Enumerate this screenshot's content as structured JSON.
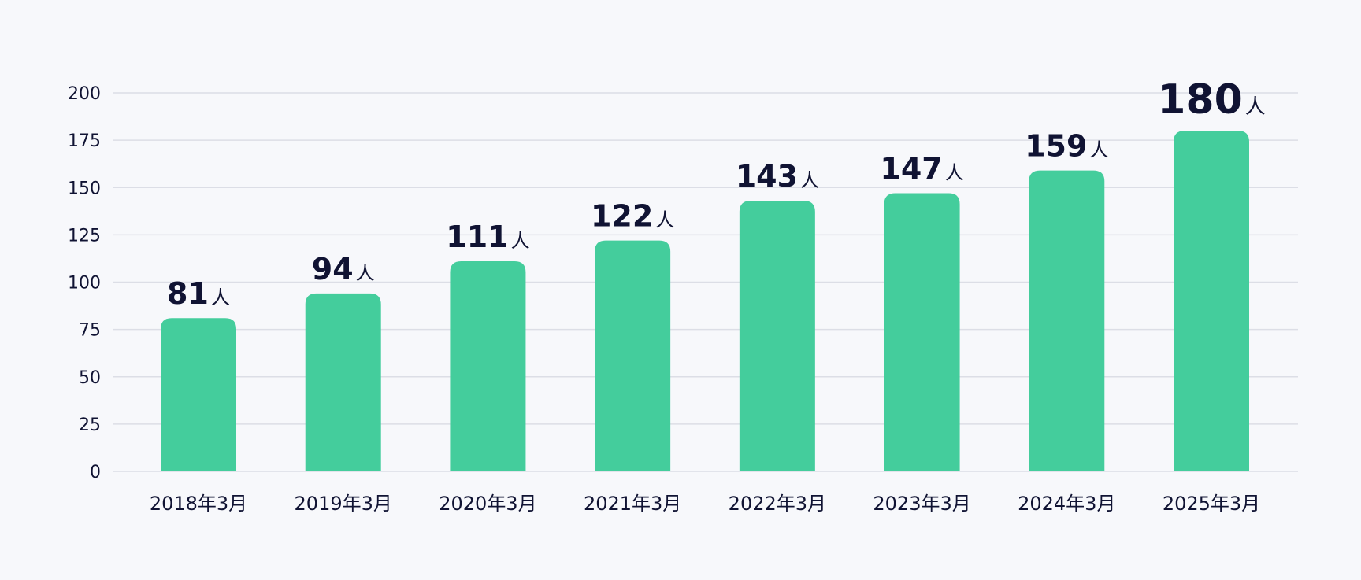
{
  "chart_data": {
    "type": "bar",
    "categories": [
      "2018年3月",
      "2019年3月",
      "2020年3月",
      "2021年3月",
      "2022年3月",
      "2023年3月",
      "2024年3月",
      "2025年3月"
    ],
    "values": [
      81,
      94,
      111,
      122,
      143,
      147,
      159,
      180
    ],
    "value_unit": "人",
    "ylim": [
      0,
      200
    ],
    "yticks": [
      0,
      25,
      50,
      75,
      100,
      125,
      150,
      175,
      200
    ],
    "grid": true,
    "highlight_last": true,
    "colors": {
      "bar": "#44cd9c",
      "grid": "#dcdee6",
      "text": "#101333",
      "background": "#f7f8fb"
    }
  }
}
